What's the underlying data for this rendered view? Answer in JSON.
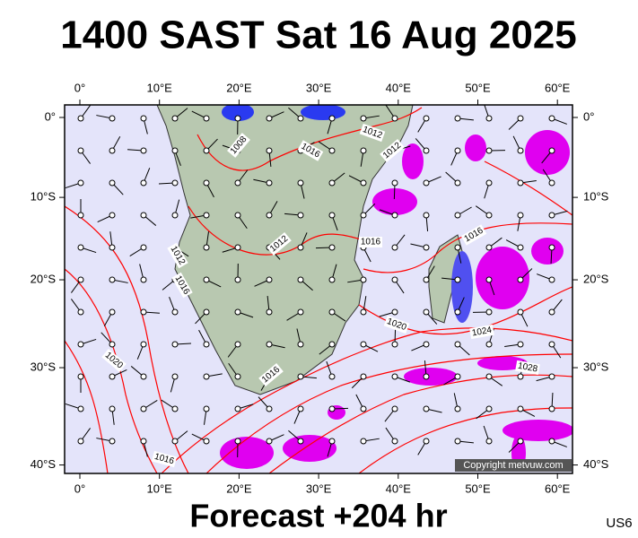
{
  "map": {
    "title": "1400 SAST Sat 16 Aug 2025",
    "footer": "Forecast +204 hr",
    "code": "US6",
    "copyright": "Copyright metvuw.com",
    "lon_ticks": [
      {
        "value": 0,
        "label": "0°"
      },
      {
        "value": 10,
        "label": "10°E"
      },
      {
        "value": 20,
        "label": "20°E"
      },
      {
        "value": 30,
        "label": "30°E"
      },
      {
        "value": 40,
        "label": "40°E"
      },
      {
        "value": 50,
        "label": "50°E"
      },
      {
        "value": 60,
        "label": "60°E"
      }
    ],
    "lat_ticks": [
      {
        "value": 0,
        "label": "0°"
      },
      {
        "value": -10,
        "label": "10°S"
      },
      {
        "value": -20,
        "label": "20°S"
      },
      {
        "value": -30,
        "label": "30°S"
      },
      {
        "value": -40,
        "label": "40°S"
      }
    ],
    "isobar_labels": [
      "1008",
      "1012",
      "1016",
      "1012",
      "1012",
      "1016",
      "1012",
      "1016",
      "1016",
      "1020",
      "1024",
      "1028",
      "1020",
      "1016",
      "1016"
    ]
  }
}
